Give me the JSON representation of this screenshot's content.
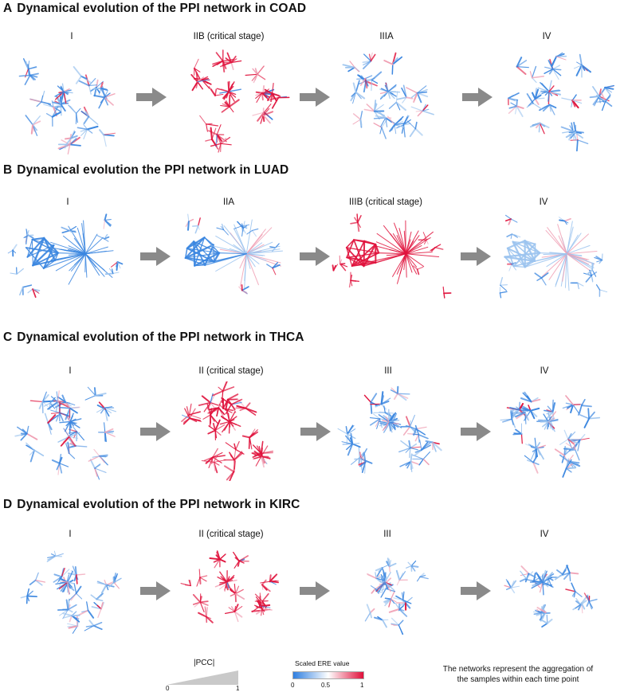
{
  "panels": [
    {
      "letter": "A",
      "title": "Dynamical evolution of the PPI network in COAD",
      "stages": [
        "I",
        "IIB (critical stage)",
        "IIIA",
        "IV"
      ],
      "critical_index": 1
    },
    {
      "letter": "B",
      "title": "Dynamical evolution the PPI network in LUAD",
      "stages": [
        "I",
        "IIA",
        "IIIB (critical stage)",
        "IV"
      ],
      "critical_index": 2
    },
    {
      "letter": "C",
      "title": "Dynamical evolution of the PPI network in THCA",
      "stages": [
        "I",
        "II (critical stage)",
        "III",
        "IV"
      ],
      "critical_index": 1
    },
    {
      "letter": "D",
      "title": "Dynamical evolution of the PPI network in KIRC",
      "stages": [
        "I",
        "II (critical stage)",
        "III",
        "IV"
      ],
      "critical_index": 1
    }
  ],
  "legend": {
    "pcc": {
      "title": "|PCC|",
      "min": "0",
      "max": "1"
    },
    "ere": {
      "title": "Scaled ERE value",
      "ticks": [
        "0",
        "0.5",
        "1"
      ],
      "colors": [
        "#2f7fe0",
        "#ffffff",
        "#e0103a"
      ]
    },
    "note_line1": "The networks represent the aggregation of",
    "note_line2": "the samples within each time point"
  },
  "colors": {
    "blue": "#3a86e0",
    "light_blue": "#9cc4ef",
    "red": "#e0123c",
    "pink": "#f0a0b4",
    "arrow": "#8a8a8a"
  }
}
